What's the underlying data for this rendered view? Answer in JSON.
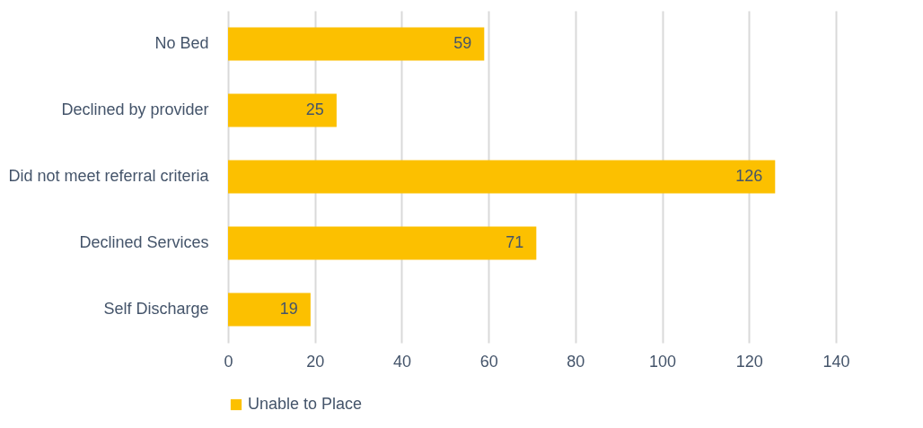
{
  "chart_data": {
    "type": "bar",
    "orientation": "horizontal",
    "categories": [
      "No Bed",
      "Declined by provider",
      "Did not meet referral criteria",
      "Declined Services",
      "Self Discharge"
    ],
    "series": [
      {
        "name": "Unable to Place",
        "color": "#fcc000",
        "values": [
          59,
          25,
          126,
          71,
          19
        ]
      }
    ],
    "xlim": [
      0,
      140
    ],
    "xticks": [
      0,
      20,
      40,
      60,
      80,
      100,
      120,
      140
    ],
    "grid": "x",
    "legend": "bottom",
    "data_labels": true
  }
}
